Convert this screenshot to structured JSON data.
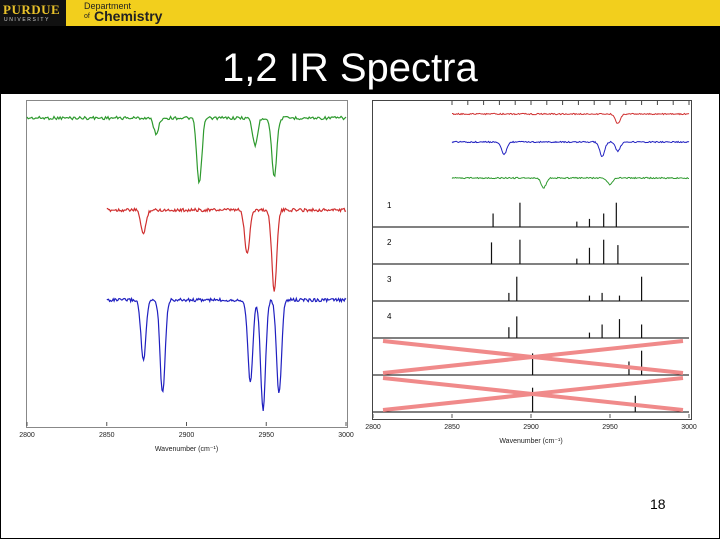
{
  "header": {
    "logo_text": "PURDUE",
    "logo_subtext": "UNIVERSITY",
    "dept_line1": "Department",
    "dept_of": "of",
    "dept_line2": "Chemistry",
    "bar_color": "#f2cf1d"
  },
  "slide": {
    "title": "1,2 IR Spectra",
    "page_number": "18"
  },
  "chart_data": [
    {
      "type": "line",
      "title": "",
      "xlabel": "Wavenumber (cm⁻¹)",
      "ylabel": "",
      "xlim": [
        2800,
        3000
      ],
      "x_ticks": [
        "2800",
        "2850",
        "2900",
        "2950",
        "3000"
      ],
      "series": [
        {
          "name": "green",
          "color": "#2e9a2e",
          "x_start": 2800,
          "x_end": 3000,
          "peaks": [
            [
              2881,
              0.2
            ],
            [
              2908,
              0.85
            ],
            [
              2943,
              0.35
            ],
            [
              2955,
              0.75
            ]
          ]
        },
        {
          "name": "red",
          "color": "#d03030",
          "x_start": 2850,
          "x_end": 3000,
          "peaks": [
            [
              2873,
              0.3
            ],
            [
              2938,
              0.55
            ],
            [
              2955,
              1.0
            ]
          ]
        },
        {
          "name": "blue",
          "color": "#2020c0",
          "x_start": 2850,
          "x_end": 3000,
          "peaks": [
            [
              2873,
              0.55
            ],
            [
              2885,
              0.85
            ],
            [
              2940,
              0.75
            ],
            [
              2948,
              1.0
            ],
            [
              2958,
              0.85
            ]
          ]
        }
      ]
    },
    {
      "type": "line",
      "title": "",
      "xlabel": "Wavenumber (cm⁻¹)",
      "ylabel": "",
      "xlim": [
        2800,
        3000
      ],
      "x_ticks": [
        "2800",
        "2850",
        "2900",
        "2950",
        "3000"
      ],
      "series": [
        {
          "name": "red",
          "color": "#d03030",
          "peaks": [
            [
              2955,
              0.6
            ]
          ]
        },
        {
          "name": "blue",
          "color": "#2020c0",
          "peaks": [
            [
              2883,
              0.7
            ],
            [
              2945,
              0.8
            ],
            [
              2955,
              0.5
            ]
          ]
        },
        {
          "name": "green",
          "color": "#2e9a2e",
          "peaks": [
            [
              2908,
              0.7
            ],
            [
              2950,
              0.5
            ]
          ]
        }
      ],
      "stick_panels": [
        {
          "label": "1",
          "sticks": [
            [
              2876,
              0.5
            ],
            [
              2893,
              0.9
            ],
            [
              2929,
              0.2
            ],
            [
              2937,
              0.3
            ],
            [
              2946,
              0.5
            ],
            [
              2954,
              0.9
            ]
          ]
        },
        {
          "label": "2",
          "sticks": [
            [
              2875,
              0.8
            ],
            [
              2893,
              0.9
            ],
            [
              2929,
              0.2
            ],
            [
              2937,
              0.6
            ],
            [
              2946,
              0.9
            ],
            [
              2955,
              0.7
            ]
          ]
        },
        {
          "label": "3",
          "sticks": [
            [
              2886,
              0.3
            ],
            [
              2891,
              0.9
            ],
            [
              2937,
              0.2
            ],
            [
              2945,
              0.3
            ],
            [
              2956,
              0.2
            ],
            [
              2970,
              0.9
            ]
          ]
        },
        {
          "label": "4",
          "sticks": [
            [
              2886,
              0.4
            ],
            [
              2891,
              0.8
            ],
            [
              2937,
              0.2
            ],
            [
              2945,
              0.5
            ],
            [
              2956,
              0.7
            ],
            [
              2970,
              0.5
            ]
          ]
        },
        {
          "label": "",
          "crossed_out": true,
          "sticks": [
            [
              2901,
              0.8
            ],
            [
              2962,
              0.5
            ],
            [
              2970,
              0.9
            ]
          ]
        },
        {
          "label": "",
          "crossed_out": true,
          "sticks": [
            [
              2901,
              0.9
            ],
            [
              2966,
              0.6
            ]
          ]
        }
      ]
    }
  ]
}
